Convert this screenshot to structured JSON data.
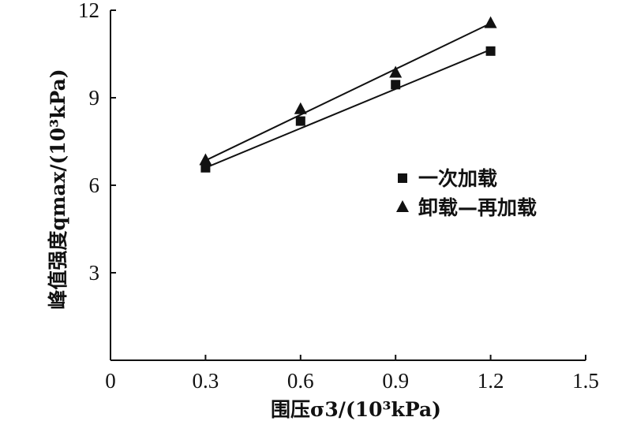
{
  "chart_data": {
    "type": "scatter",
    "xlabel": "围压σ3/(10³kPa)",
    "ylabel": "峰值强度qmax/(10³kPa)",
    "xlim": [
      0,
      1.5
    ],
    "ylim": [
      0,
      12
    ],
    "x_ticks": [
      "0",
      "0.3",
      "0.6",
      "0.9",
      "1.2",
      "1.5"
    ],
    "y_ticks": [
      "3",
      "6",
      "9",
      "12"
    ],
    "legend_position": "right-middle",
    "series": [
      {
        "name": "一次加载",
        "marker": "square",
        "color": "#111111",
        "x": [
          0.3,
          0.6,
          0.9,
          1.2
        ],
        "y": [
          6.6,
          8.2,
          9.45,
          10.6
        ],
        "fit_line": [
          [
            0.3,
            6.6
          ],
          [
            1.2,
            10.65
          ]
        ]
      },
      {
        "name": "卸载—再加载",
        "marker": "triangle",
        "color": "#111111",
        "x": [
          0.3,
          0.6,
          0.9,
          1.2
        ],
        "y": [
          6.85,
          8.6,
          9.85,
          11.55
        ],
        "fit_line": [
          [
            0.3,
            6.85
          ],
          [
            1.2,
            11.55
          ]
        ]
      }
    ]
  }
}
